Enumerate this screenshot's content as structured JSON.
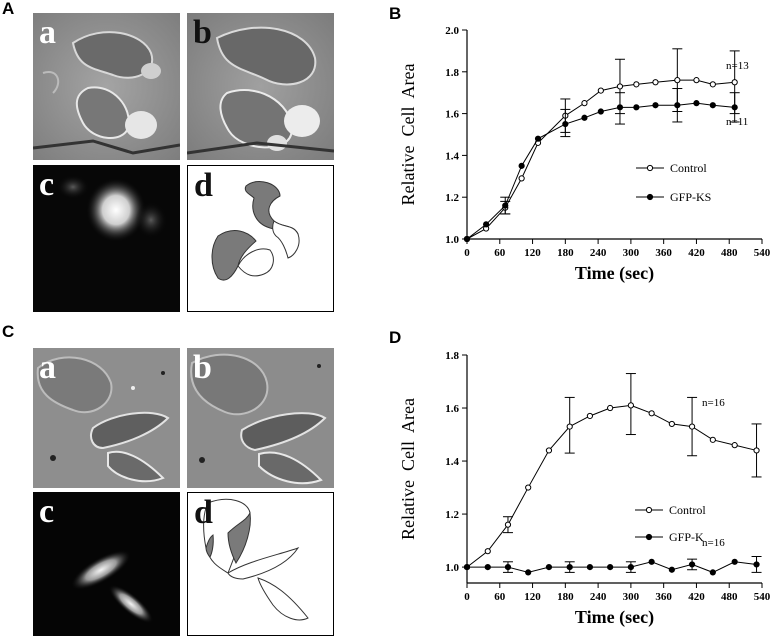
{
  "panels": {
    "A": {
      "label": "A",
      "sub": {
        "a": "a",
        "b": "b",
        "c": "c",
        "d": "d"
      }
    },
    "B": {
      "label": "B"
    },
    "C": {
      "label": "C",
      "sub": {
        "a": "a",
        "b": "b",
        "c": "c",
        "d": "d"
      }
    },
    "D": {
      "label": "D"
    }
  },
  "colors": {
    "phase_bg": "#8c8c8c",
    "fluor_bg": "#070707",
    "outline_fill": "#7a7a7a"
  },
  "chart_data": [
    {
      "type": "line",
      "panel": "B",
      "xlabel": "Time (sec)",
      "ylabel": "Relative  Cell  Area",
      "xlim": [
        0,
        540
      ],
      "ylim": [
        1.0,
        2.0
      ],
      "xticks": [
        0,
        60,
        120,
        180,
        240,
        300,
        360,
        420,
        480,
        540
      ],
      "yticks": [
        1.0,
        1.2,
        1.4,
        1.6,
        1.8,
        2.0
      ],
      "ytick_labels": [
        "1.0",
        "1.2",
        "1.4",
        "1.6",
        "1.8",
        "2.0"
      ],
      "legend_position": "right",
      "series": [
        {
          "name": "Control",
          "marker": "open-circle",
          "x": [
            0,
            35,
            70,
            100,
            130,
            180,
            215,
            245,
            280,
            310,
            345,
            385,
            420,
            450,
            490
          ],
          "y": [
            1.0,
            1.05,
            1.15,
            1.29,
            1.46,
            1.59,
            1.65,
            1.71,
            1.73,
            1.74,
            1.75,
            1.76,
            1.76,
            1.74,
            1.75
          ],
          "errors": [
            {
              "x": 70,
              "low": 1.12,
              "high": 1.18
            },
            {
              "x": 180,
              "low": 1.51,
              "high": 1.67
            },
            {
              "x": 280,
              "low": 1.6,
              "high": 1.86
            },
            {
              "x": 385,
              "low": 1.61,
              "high": 1.91
            },
            {
              "x": 490,
              "low": 1.6,
              "high": 1.9
            }
          ],
          "annotation": "n=13"
        },
        {
          "name": "GFP-KS",
          "marker": "filled-circle",
          "x": [
            0,
            35,
            70,
            100,
            130,
            180,
            215,
            245,
            280,
            310,
            345,
            385,
            420,
            450,
            490
          ],
          "y": [
            1.0,
            1.07,
            1.16,
            1.35,
            1.48,
            1.55,
            1.58,
            1.61,
            1.63,
            1.63,
            1.64,
            1.64,
            1.65,
            1.64,
            1.63
          ],
          "errors": [
            {
              "x": 70,
              "low": 1.12,
              "high": 1.2
            },
            {
              "x": 180,
              "low": 1.49,
              "high": 1.62
            },
            {
              "x": 280,
              "low": 1.55,
              "high": 1.7
            },
            {
              "x": 385,
              "low": 1.56,
              "high": 1.72
            },
            {
              "x": 490,
              "low": 1.56,
              "high": 1.7
            }
          ],
          "annotation": "n=11"
        }
      ]
    },
    {
      "type": "line",
      "panel": "D",
      "xlabel": "Time (sec)",
      "ylabel": "Relative  Cell  Area",
      "xlim": [
        0,
        540
      ],
      "ylim": [
        0.94,
        1.8
      ],
      "xticks": [
        0,
        60,
        120,
        180,
        240,
        300,
        360,
        420,
        480,
        540
      ],
      "yticks": [
        1.0,
        1.2,
        1.4,
        1.6,
        1.8
      ],
      "ytick_labels": [
        "1.0",
        "1.2",
        "1.4",
        "1.6",
        "1.8"
      ],
      "legend_position": "bottom-right",
      "series": [
        {
          "name": "Control",
          "marker": "open-circle",
          "x": [
            0,
            38,
            75,
            112,
            150,
            188,
            225,
            262,
            300,
            338,
            375,
            412,
            450,
            490,
            530
          ],
          "y": [
            1.0,
            1.06,
            1.16,
            1.3,
            1.44,
            1.53,
            1.57,
            1.6,
            1.61,
            1.58,
            1.54,
            1.53,
            1.48,
            1.46,
            1.44
          ],
          "errors": [
            {
              "x": 75,
              "low": 1.13,
              "high": 1.19
            },
            {
              "x": 188,
              "low": 1.43,
              "high": 1.64
            },
            {
              "x": 300,
              "low": 1.5,
              "high": 1.73
            },
            {
              "x": 412,
              "low": 1.42,
              "high": 1.64
            },
            {
              "x": 530,
              "low": 1.34,
              "high": 1.54
            }
          ],
          "annotation": "n=16"
        },
        {
          "name": "GFP-K",
          "marker": "filled-circle",
          "x": [
            0,
            38,
            75,
            112,
            150,
            188,
            225,
            262,
            300,
            338,
            375,
            412,
            450,
            490,
            530
          ],
          "y": [
            1.0,
            1.0,
            1.0,
            0.98,
            1.0,
            1.0,
            1.0,
            1.0,
            1.0,
            1.02,
            0.99,
            1.01,
            0.98,
            1.02,
            1.01
          ],
          "errors": [
            {
              "x": 75,
              "low": 0.98,
              "high": 1.02
            },
            {
              "x": 188,
              "low": 0.98,
              "high": 1.02
            },
            {
              "x": 300,
              "low": 0.98,
              "high": 1.02
            },
            {
              "x": 412,
              "low": 0.99,
              "high": 1.03
            },
            {
              "x": 530,
              "low": 0.98,
              "high": 1.04
            }
          ],
          "annotation": "n=16"
        }
      ]
    }
  ]
}
